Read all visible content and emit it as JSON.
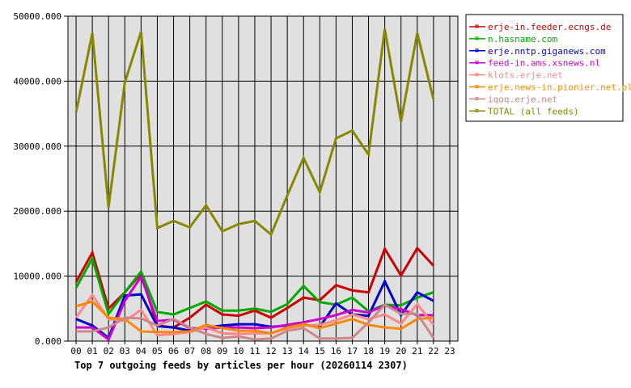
{
  "chart_data": {
    "type": "line",
    "title": "Top 7 outgoing feeds by articles per hour (20260114 2307)",
    "xlabel": "",
    "ylabel": "",
    "ylim": [
      0,
      50000
    ],
    "grid": true,
    "legend_position": "right",
    "y_ticks": [
      "0.000",
      "10000.000",
      "20000.000",
      "30000.000",
      "40000.000",
      "50000.000"
    ],
    "categories": [
      "00",
      "01",
      "02",
      "03",
      "04",
      "05",
      "06",
      "07",
      "08",
      "09",
      "10",
      "11",
      "12",
      "13",
      "14",
      "15",
      "16",
      "17",
      "18",
      "19",
      "20",
      "21",
      "22",
      "23"
    ],
    "series": [
      {
        "name": "erje-in.feeder.ecngs.de",
        "color": "#cc0000",
        "values": [
          9100,
          13600,
          5000,
          7500,
          10400,
          2400,
          2100,
          3600,
          5600,
          4100,
          3900,
          4700,
          3600,
          5100,
          6700,
          6300,
          8600,
          7800,
          7500,
          14200,
          10100,
          14300,
          11600
        ]
      },
      {
        "name": "n.hasname.com",
        "color": "#00aa00",
        "values": [
          8200,
          12700,
          4200,
          7500,
          10700,
          4500,
          4100,
          5100,
          6100,
          4700,
          4700,
          5000,
          4500,
          5700,
          8500,
          6000,
          5600,
          6700,
          4600,
          5600,
          5500,
          6700,
          7500
        ]
      },
      {
        "name": "erje.nntp.giganews.com",
        "color": "#0000cc",
        "values": [
          3400,
          2400,
          500,
          7000,
          7200,
          2300,
          2100,
          1600,
          2100,
          2400,
          2600,
          2600,
          2200,
          2400,
          2500,
          2200,
          5800,
          4100,
          3900,
          9200,
          4000,
          7500,
          6200
        ]
      },
      {
        "name": "feed-in.ams.xsnews.nl",
        "color": "#cc00cc",
        "values": [
          2100,
          2100,
          250,
          6200,
          9900,
          3100,
          3300,
          2000,
          1900,
          2100,
          2100,
          2000,
          2100,
          2500,
          2900,
          3400,
          4000,
          4800,
          4400,
          5500,
          4900,
          4000,
          4000
        ]
      },
      {
        "name": "klots.erje.net",
        "color": "#ff8888",
        "values": [
          3600,
          7100,
          3400,
          3100,
          4800,
          900,
          1100,
          1400,
          2100,
          1200,
          1100,
          1200,
          1200,
          2000,
          2400,
          2500,
          3200,
          4100,
          3400,
          4100,
          2700,
          5700,
          2500
        ]
      },
      {
        "name": "erje.news-in.pionier.net.pl",
        "color": "#ff8800",
        "values": [
          5350,
          6100,
          3600,
          3400,
          1500,
          1400,
          1400,
          1500,
          2500,
          2000,
          1600,
          1600,
          1200,
          2100,
          2600,
          2000,
          2700,
          3400,
          2500,
          2100,
          1900,
          3400,
          3600
        ]
      },
      {
        "name": "iqoq.erje.net",
        "color": "#cc8888",
        "values": [
          1500,
          1500,
          2100,
          3600,
          3500,
          2400,
          3400,
          2100,
          1100,
          500,
          700,
          250,
          400,
          1600,
          2000,
          400,
          400,
          500,
          2900,
          5600,
          4200,
          4200,
          500
        ]
      },
      {
        "name": "TOTAL (all feeds)",
        "color": "#888800",
        "values": [
          35200,
          47400,
          20600,
          39800,
          47600,
          17400,
          18500,
          17500,
          20900,
          16900,
          18000,
          18500,
          16400,
          22400,
          28200,
          22900,
          31200,
          32400,
          28700,
          48000,
          33800,
          47400,
          37200
        ]
      }
    ]
  }
}
